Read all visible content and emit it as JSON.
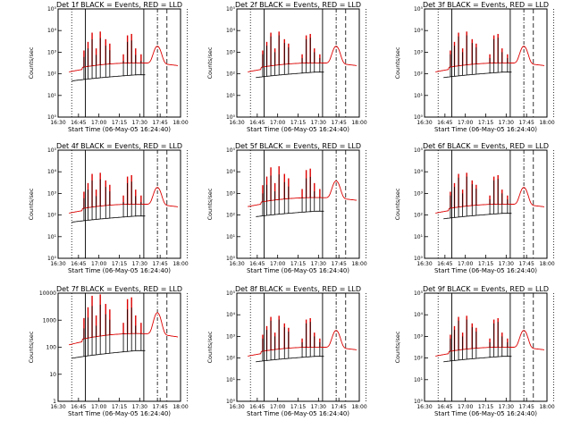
{
  "chart_data": {
    "type": "line",
    "x_ticks": [
      "16:30",
      "16:45",
      "17:00",
      "17:15",
      "17:30",
      "17:45",
      "18:00"
    ],
    "x_range": [
      "16:30",
      "18:00"
    ],
    "xlabel": "Start Time (06-May-05 16:24:40)",
    "ylabel": "Counts/sec",
    "y_scale": "log",
    "black_label": "BLACK = Events",
    "red_label": "RED = LLD",
    "colors": {
      "events": "#000000",
      "lld": "#dd0000"
    },
    "markers": {
      "dotted": [
        "16:40",
        "18:05"
      ],
      "solid": [
        "16:50",
        "17:33"
      ],
      "dashdot": [
        "17:43"
      ],
      "dashed": [
        "17:50"
      ]
    },
    "panels": [
      {
        "title": "Det 1f BLACK = Events, RED = LLD",
        "det": "1f",
        "ylim": [
          1,
          100000
        ],
        "y_tick_labels": [
          "10⁰",
          "10¹",
          "10²",
          "10³",
          "10⁴",
          "10⁵"
        ],
        "events_base": 60,
        "lld_base": 200,
        "events_gap": true
      },
      {
        "title": "Det 2f BLACK = Events, RED = LLD",
        "det": "2f",
        "ylim": [
          1,
          100000
        ],
        "y_tick_labels": [
          "10⁰",
          "10¹",
          "10²",
          "10³",
          "10⁴",
          "10⁵"
        ],
        "events_base": 80,
        "lld_base": 200,
        "events_gap": false
      },
      {
        "title": "Det 3f BLACK = Events, RED = LLD",
        "det": "3f",
        "ylim": [
          1,
          100000
        ],
        "y_tick_labels": [
          "10⁰",
          "10¹",
          "10²",
          "10³",
          "10⁴",
          "10⁵"
        ],
        "events_base": 80,
        "lld_base": 200,
        "events_gap": false
      },
      {
        "title": "Det 4f BLACK = Events, RED = LLD",
        "det": "4f",
        "ylim": [
          1,
          100000
        ],
        "y_tick_labels": [
          "10⁰",
          "10¹",
          "10²",
          "10³",
          "10⁴",
          "10⁵"
        ],
        "events_base": 60,
        "lld_base": 200,
        "events_gap": true
      },
      {
        "title": "Det 5f BLACK = Events, RED = LLD",
        "det": "5f",
        "ylim": [
          1,
          100000
        ],
        "y_tick_labels": [
          "10⁰",
          "10¹",
          "10²",
          "10³",
          "10⁴",
          "10⁵"
        ],
        "events_base": 100,
        "lld_base": 400,
        "events_gap": false
      },
      {
        "title": "Det 6f BLACK = Events, RED = LLD",
        "det": "6f",
        "ylim": [
          1,
          100000
        ],
        "y_tick_labels": [
          "10⁰",
          "10¹",
          "10²",
          "10³",
          "10⁴",
          "10⁵"
        ],
        "events_base": 80,
        "lld_base": 200,
        "events_gap": false
      },
      {
        "title": "Det 7f BLACK = Events, RED = LLD",
        "det": "7f",
        "ylim": [
          1,
          10000
        ],
        "y_tick_labels": [
          "1",
          "10",
          "100",
          "1000",
          "10000"
        ],
        "events_base": 50,
        "lld_base": 200,
        "events_gap": true
      },
      {
        "title": "Det 8f BLACK = Events, RED = LLD",
        "det": "8f",
        "ylim": [
          1,
          100000
        ],
        "y_tick_labels": [
          "10⁰",
          "10¹",
          "10²",
          "10³",
          "10⁴",
          "10⁵"
        ],
        "events_base": 80,
        "lld_base": 200,
        "events_gap": false
      },
      {
        "title": "Det 9f BLACK = Events, RED = LLD",
        "det": "9f",
        "ylim": [
          1,
          100000
        ],
        "y_tick_labels": [
          "10⁰",
          "10¹",
          "10²",
          "10³",
          "10⁴",
          "10⁵"
        ],
        "events_base": 80,
        "lld_base": 200,
        "events_gap": false
      }
    ]
  }
}
